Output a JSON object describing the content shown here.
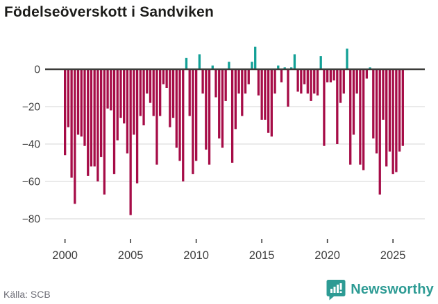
{
  "header": {
    "title": "Födelseöverskott i Sandviken"
  },
  "footer": {
    "source": "Källa: SCB",
    "brand": "Newsworthy"
  },
  "colors": {
    "negative_bar": "#a60c47",
    "positive_bar": "#12a096",
    "zero_line": "#3b3b39",
    "gridline": "#e4e4e4",
    "axis_text": "#3f3f3f",
    "source_text": "#6f6f78",
    "brand_teal": "#2d9b94",
    "title_text": "#1c1c1a"
  },
  "chart_data": {
    "type": "bar",
    "title": "Födelseöverskott i Sandviken",
    "x_unit": "quarter",
    "x_start_year": 2000,
    "periods_per_year": 4,
    "values": [
      -46,
      -31,
      -58,
      -72,
      -35,
      -36,
      -41,
      -57,
      -52,
      -52,
      -60,
      -47,
      -67,
      -21,
      -22,
      -56,
      -38,
      -26,
      -29,
      -45,
      -78,
      -35,
      -61,
      -25,
      -30,
      -13,
      -18,
      -25,
      -51,
      -25,
      -8,
      -10,
      -31,
      -26,
      -42,
      -49,
      -60,
      6,
      -25,
      -56,
      -49,
      8,
      -13,
      -43,
      -51,
      2,
      -15,
      -37,
      -42,
      -17,
      4,
      -50,
      -32,
      -13,
      -25,
      -13,
      -8,
      4,
      12,
      -14,
      -27,
      -27,
      -34,
      -36,
      -13,
      2,
      -7,
      1,
      -20,
      1,
      8,
      -12,
      -13,
      -8,
      -13,
      -17,
      -13,
      -14,
      7,
      -41,
      -7,
      -7,
      -6,
      -40,
      -18,
      -13,
      11,
      -51,
      -35,
      -13,
      -51,
      -54,
      -5,
      1,
      -37,
      -45,
      -67,
      -27,
      -52,
      -44,
      -56,
      -55,
      -44,
      -41
    ],
    "y_ticks": [
      {
        "value": 0,
        "label": "0"
      },
      {
        "value": -20,
        "label": "−20"
      },
      {
        "value": -40,
        "label": "−40"
      },
      {
        "value": -60,
        "label": "−60"
      },
      {
        "value": -80,
        "label": "−80"
      }
    ],
    "x_ticks": [
      {
        "year": 2000,
        "label": "2000"
      },
      {
        "year": 2005,
        "label": "2005"
      },
      {
        "year": 2010,
        "label": "2010"
      },
      {
        "year": 2015,
        "label": "2015"
      },
      {
        "year": 2020,
        "label": "2020"
      },
      {
        "year": 2025,
        "label": "2025"
      }
    ],
    "ylim": [
      -85,
      15
    ],
    "grid": true,
    "legend": "none"
  }
}
